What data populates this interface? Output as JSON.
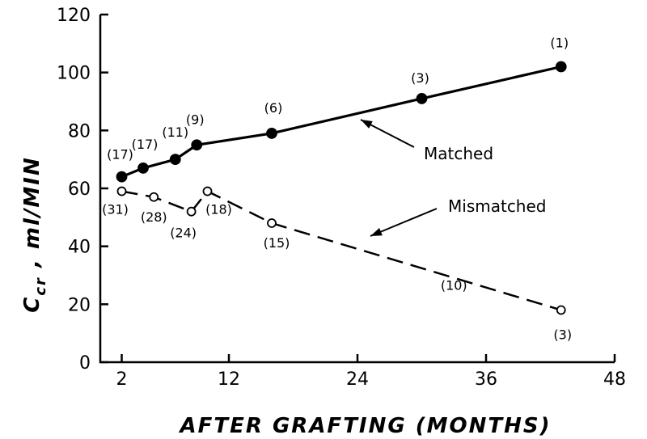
{
  "chart_data": {
    "type": "line",
    "xlabel": "AFTER GRAFTING (MONTHS)",
    "ylabel_main": "C",
    "ylabel_sub": "cr",
    "ylabel_rest": " , ml/MIN",
    "xlim": [
      0,
      48
    ],
    "ylim": [
      0,
      120
    ],
    "xticks": [
      2,
      12,
      24,
      36,
      48
    ],
    "yticks": [
      0,
      20,
      40,
      60,
      80,
      100,
      120
    ],
    "grid": false,
    "series": [
      {
        "name": "Matched",
        "style": "solid",
        "marker": "filled-circle",
        "color": "#000000",
        "x": [
          2,
          4,
          7,
          9,
          16,
          30,
          43
        ],
        "y": [
          64,
          67,
          70,
          75,
          79,
          91,
          102
        ],
        "counts": [
          "(17)",
          "(17)",
          "(11)",
          "(9)",
          "(6)",
          "(3)",
          "(1)"
        ]
      },
      {
        "name": "Mismatched",
        "style": "dashed",
        "marker": "open-circle",
        "color": "#000000",
        "x": [
          2,
          5,
          8.5,
          10,
          16,
          43
        ],
        "y": [
          59,
          57,
          52,
          59,
          48,
          18
        ],
        "counts": [
          "(31)",
          "(28)",
          "(24)",
          "(18)",
          "(15)",
          "(3)"
        ]
      }
    ],
    "extra_labels": [
      {
        "text": "(10)",
        "series": "Mismatched",
        "x": 33,
        "y": 25
      }
    ]
  }
}
